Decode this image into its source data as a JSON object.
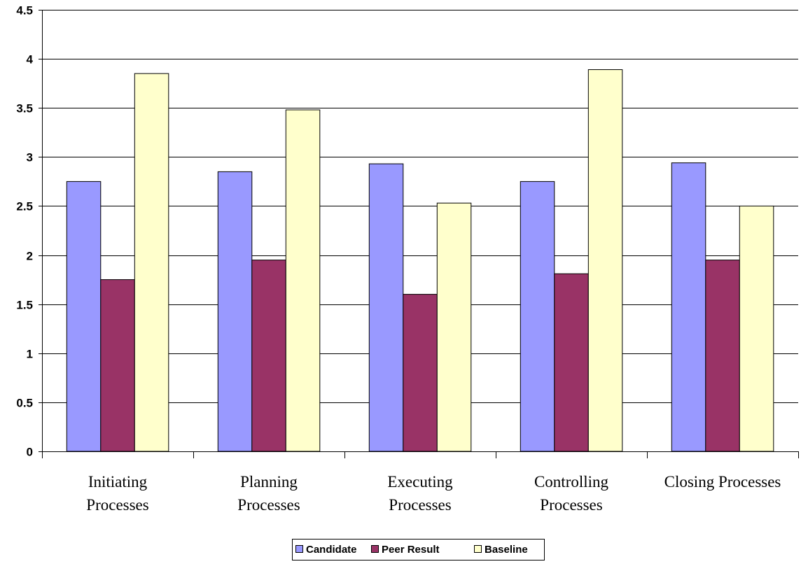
{
  "chart_data": {
    "type": "bar",
    "title": "",
    "xlabel": "",
    "ylabel": "",
    "categories": [
      [
        "Initiating",
        "Processes"
      ],
      [
        "Planning",
        "Processes"
      ],
      [
        "Executing",
        "Processes"
      ],
      [
        "Controlling",
        "Processes"
      ],
      [
        "Closing Processes"
      ]
    ],
    "series": [
      {
        "name": "Candidate",
        "color": "#9999FF",
        "values": [
          2.75,
          2.85,
          2.93,
          2.75,
          2.94
        ]
      },
      {
        "name": "Peer Result",
        "color": "#993366",
        "values": [
          1.75,
          1.95,
          1.6,
          1.81,
          1.95
        ]
      },
      {
        "name": "Baseline",
        "color": "#FFFFCC",
        "values": [
          3.85,
          3.48,
          2.53,
          3.89,
          2.5
        ]
      }
    ],
    "ylim": [
      0,
      4.5
    ],
    "yticks": [
      "0",
      "0.5",
      "1",
      "1.5",
      "2",
      "2.5",
      "3",
      "3.5",
      "4",
      "4.5"
    ],
    "grid": true,
    "legend_position": "bottom"
  }
}
